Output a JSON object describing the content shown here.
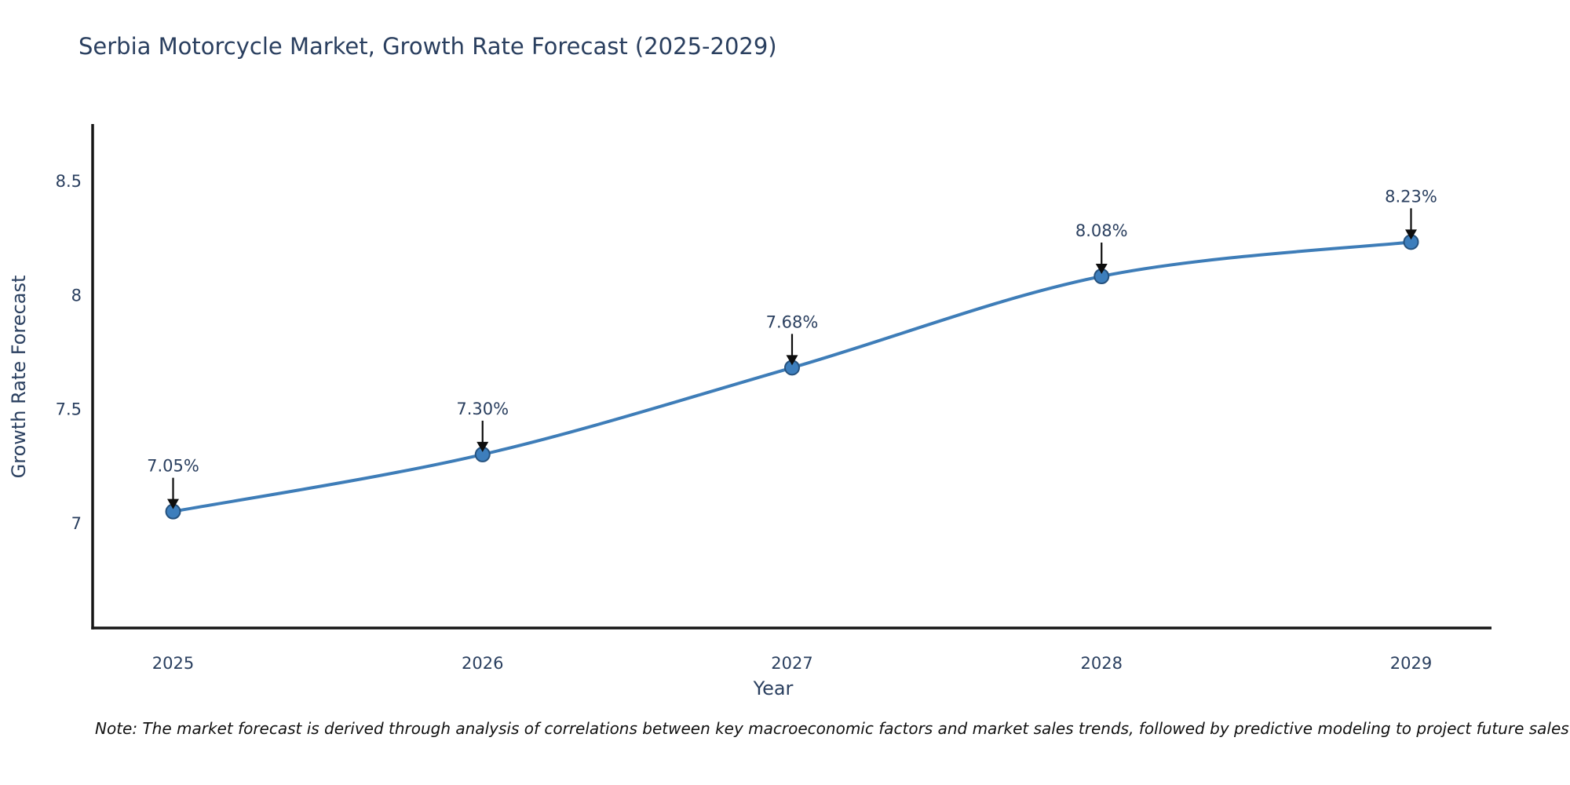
{
  "title": "Serbia Motorcycle Market, Growth Rate Forecast (2025-2029)",
  "note": "Note: The market forecast is derived through analysis of correlations between key macroeconomic factors and market sales trends, followed by predictive modeling to project future sales",
  "chart_data": {
    "type": "line",
    "title": "Serbia Motorcycle Market, Growth Rate Forecast (2025-2029)",
    "xlabel": "Year",
    "ylabel": "Growth Rate Forecast",
    "x": [
      2025,
      2026,
      2027,
      2028,
      2029
    ],
    "categories": [
      "2025",
      "2026",
      "2027",
      "2028",
      "2029"
    ],
    "values": [
      7.05,
      7.3,
      7.68,
      8.08,
      8.23
    ],
    "point_labels": [
      "7.05%",
      "7.30%",
      "7.68%",
      "8.08%",
      "8.23%"
    ],
    "y_ticks": [
      7,
      7.5,
      8,
      8.5
    ],
    "y_tick_labels": [
      "7",
      "7.5",
      "8",
      "8.5"
    ],
    "xlim": [
      2024.74,
      2029.26
    ],
    "ylim": [
      6.54,
      8.74
    ],
    "grid": false,
    "legend": "none",
    "line_shape": "spline",
    "annotation_arrows": true,
    "colors": {
      "line": "#3e7db8",
      "marker_fill": "#3d7ebc",
      "marker_edge": "#26527e",
      "arrow": "#0d0d0d",
      "axis": "#161616",
      "text": "#2a3f5f",
      "tick_text": "#2a3f5f",
      "note_text": "#111111",
      "background": "#ffffff"
    }
  }
}
